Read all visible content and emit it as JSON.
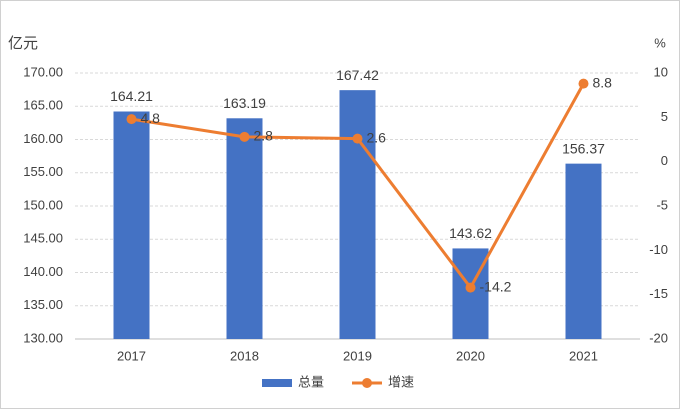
{
  "chart_data": {
    "type": "bar",
    "y_axis_label": "亿元",
    "y2_axis_label": "%",
    "categories": [
      "2017",
      "2018",
      "2019",
      "2020",
      "2021"
    ],
    "series": [
      {
        "name": "总量",
        "type": "bar",
        "color": "#4472c4",
        "values": [
          164.21,
          163.19,
          167.42,
          143.62,
          156.37
        ]
      },
      {
        "name": "增速",
        "type": "line",
        "axis": "y2",
        "color": "#ed7d31",
        "values": [
          4.8,
          2.8,
          2.6,
          -14.2,
          8.8
        ]
      }
    ],
    "ylim": [
      130,
      170
    ],
    "yticks": [
      {
        "value": 130,
        "label": "130.00"
      },
      {
        "value": 135,
        "label": "135.00"
      },
      {
        "value": 140,
        "label": "140.00"
      },
      {
        "value": 145,
        "label": "145.00"
      },
      {
        "value": 150,
        "label": "150.00"
      },
      {
        "value": 155,
        "label": "155.00"
      },
      {
        "value": 160,
        "label": "160.00"
      },
      {
        "value": 165,
        "label": "165.00"
      },
      {
        "value": 170,
        "label": "170.00"
      }
    ],
    "y2lim": [
      -20,
      10
    ],
    "y2ticks": [
      -20,
      -15,
      -10,
      -5,
      0,
      5,
      10
    ],
    "grid": true,
    "legend": "bottom"
  }
}
